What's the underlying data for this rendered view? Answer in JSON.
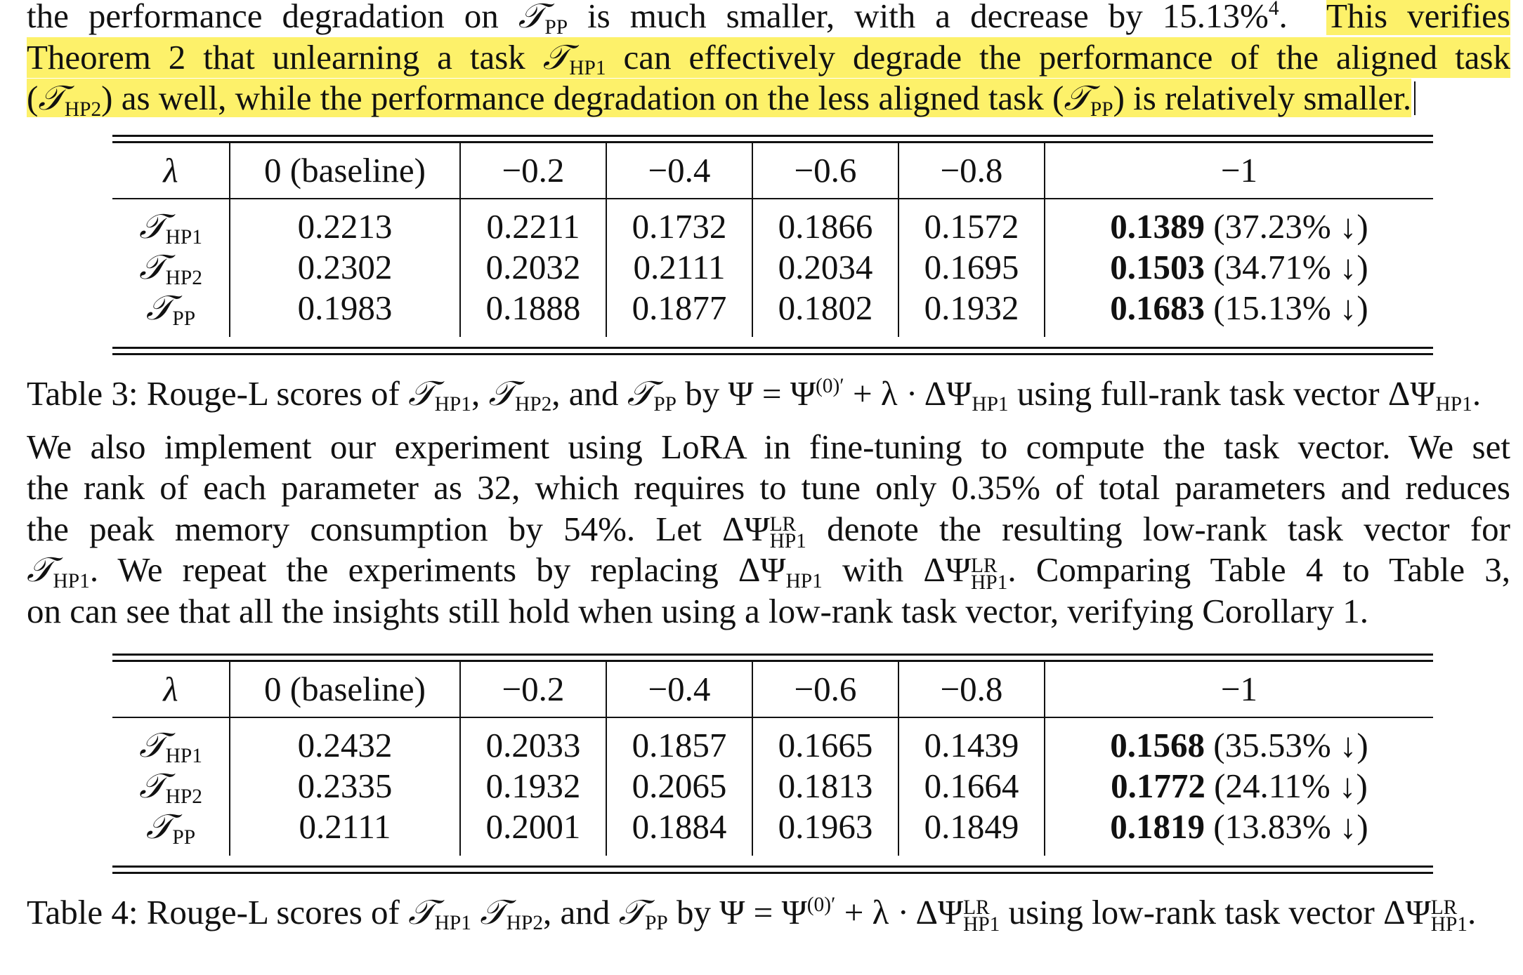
{
  "intro": {
    "line1_start": "the performance degradation on ",
    "line1_mid": " is much smaller, with a decrease by 15.13%",
    "footnote": "4",
    "line1_hl": "This verifies",
    "line2": "Theorem 2 that unlearning a task ",
    "line2_end": " can effectively degrade the performance of the aligned task",
    "line3_a": "(",
    "line3_b": ") as well, while the performance degradation on the less aligned task (",
    "line3_c": ") is relatively smaller."
  },
  "symbols": {
    "T": "𝒯",
    "HP1": "HP1",
    "HP2": "HP2",
    "PP": "PP",
    "lambda": "λ",
    "psi": "Ψ",
    "delta_psi": "ΔΨ",
    "psi0": "(0)′",
    "LR": "LR"
  },
  "table3": {
    "headers": [
      "λ",
      "0 (baseline)",
      "−0.2",
      "−0.4",
      "−0.6",
      "−0.8",
      "−1"
    ],
    "rows": [
      {
        "task": "HP1",
        "values": [
          "0.2213",
          "0.2211",
          "0.1732",
          "0.1866",
          "0.1572"
        ],
        "best": "0.1389",
        "pct": "(37.23% ↓)"
      },
      {
        "task": "HP2",
        "values": [
          "0.2302",
          "0.2032",
          "0.2111",
          "0.2034",
          "0.1695"
        ],
        "best": "0.1503",
        "pct": "(34.71% ↓)"
      },
      {
        "task": "PP",
        "values": [
          "0.1983",
          "0.1888",
          "0.1877",
          "0.1802",
          "0.1932"
        ],
        "best": "0.1683",
        "pct": "(15.13% ↓)"
      }
    ],
    "caption_label": "Table 3:",
    "caption_a": " Rouge-L scores of ",
    "caption_b": ", ",
    "caption_c": ", and ",
    "caption_d": " by Ψ = Ψ",
    "caption_e": " + λ · ΔΨ",
    "caption_f": " using full-rank task vector ΔΨ",
    "caption_g": "."
  },
  "para2": {
    "l1": "We also implement our experiment using LoRA in fine-tuning to compute the task vector. We set",
    "l2": "the rank of each parameter as 32, which requires to tune only 0.35% of total parameters and reduces",
    "l3_a": "the peak memory consumption by 54%. Let ΔΨ",
    "l3_b": " denote the resulting low-rank task vector for",
    "l4_b": ". We repeat the experiments by replacing ΔΨ",
    "l4_c": " with ΔΨ",
    "l4_d": ". Comparing Table 4 to Table 3,",
    "l5": "on can see that all the insights still hold when using a low-rank task vector, verifying Corollary 1."
  },
  "table4": {
    "headers": [
      "λ",
      "0 (baseline)",
      "−0.2",
      "−0.4",
      "−0.6",
      "−0.8",
      "−1"
    ],
    "rows": [
      {
        "task": "HP1",
        "values": [
          "0.2432",
          "0.2033",
          "0.1857",
          "0.1665",
          "0.1439"
        ],
        "best": "0.1568",
        "pct": "(35.53% ↓)"
      },
      {
        "task": "HP2",
        "values": [
          "0.2335",
          "0.1932",
          "0.2065",
          "0.1813",
          "0.1664"
        ],
        "best": "0.1772",
        "pct": "(24.11% ↓)"
      },
      {
        "task": "PP",
        "values": [
          "0.2111",
          "0.2001",
          "0.1884",
          "0.1963",
          "0.1849"
        ],
        "best": "0.1819",
        "pct": "(13.83% ↓)"
      }
    ],
    "caption_label": "Table 4:",
    "caption_a": " Rouge-L scores of ",
    "caption_b": " ",
    "caption_c": ", and ",
    "caption_d": " by Ψ = Ψ",
    "caption_e": " + λ · ΔΨ",
    "caption_f": " using low-rank task vector ΔΨ",
    "caption_g": "."
  },
  "colors": {
    "highlight": "#fdf16a",
    "text": "#111111"
  }
}
